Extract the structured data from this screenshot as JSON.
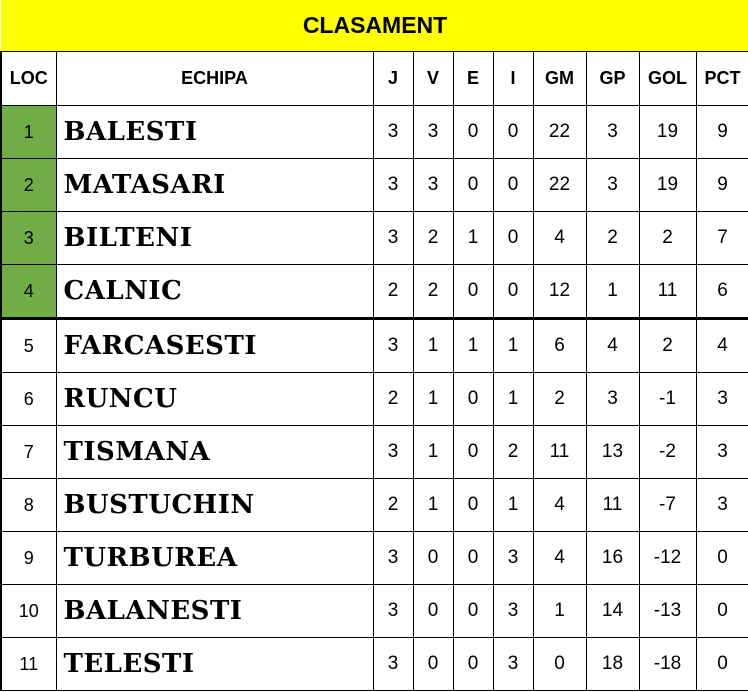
{
  "title": "CLASAMENT",
  "colors": {
    "title_bg": "#ffff00",
    "qualified_bg": "#70ad47"
  },
  "columns": [
    "LOC",
    "ECHIPA",
    "J",
    "V",
    "E",
    "I",
    "GM",
    "GP",
    "GOL",
    "PCT"
  ],
  "rows": [
    [
      "1",
      "BALESTI",
      "3",
      "3",
      "0",
      "0",
      "22",
      "3",
      "19",
      "9"
    ],
    [
      "2",
      "MATASARI",
      "3",
      "3",
      "0",
      "0",
      "22",
      "3",
      "19",
      "9"
    ],
    [
      "3",
      "BILTENI",
      "3",
      "2",
      "1",
      "0",
      "4",
      "2",
      "2",
      "7"
    ],
    [
      "4",
      "CALNIC",
      "2",
      "2",
      "0",
      "0",
      "12",
      "1",
      "11",
      "6"
    ],
    [
      "5",
      "FARCASESTI",
      "3",
      "1",
      "1",
      "1",
      "6",
      "4",
      "2",
      "4"
    ],
    [
      "6",
      "RUNCU",
      "2",
      "1",
      "0",
      "1",
      "2",
      "3",
      "-1",
      "3"
    ],
    [
      "7",
      "TISMANA",
      "3",
      "1",
      "0",
      "2",
      "11",
      "13",
      "-2",
      "3"
    ],
    [
      "8",
      "BUSTUCHIN",
      "2",
      "1",
      "0",
      "1",
      "4",
      "11",
      "-7",
      "3"
    ],
    [
      "9",
      "TURBUREA",
      "3",
      "0",
      "0",
      "3",
      "4",
      "16",
      "-12",
      "0"
    ],
    [
      "10",
      "BALANESTI",
      "3",
      "0",
      "0",
      "3",
      "1",
      "14",
      "-13",
      "0"
    ],
    [
      "11",
      "TELESTI",
      "3",
      "0",
      "0",
      "3",
      "0",
      "18",
      "-18",
      "0"
    ]
  ]
}
